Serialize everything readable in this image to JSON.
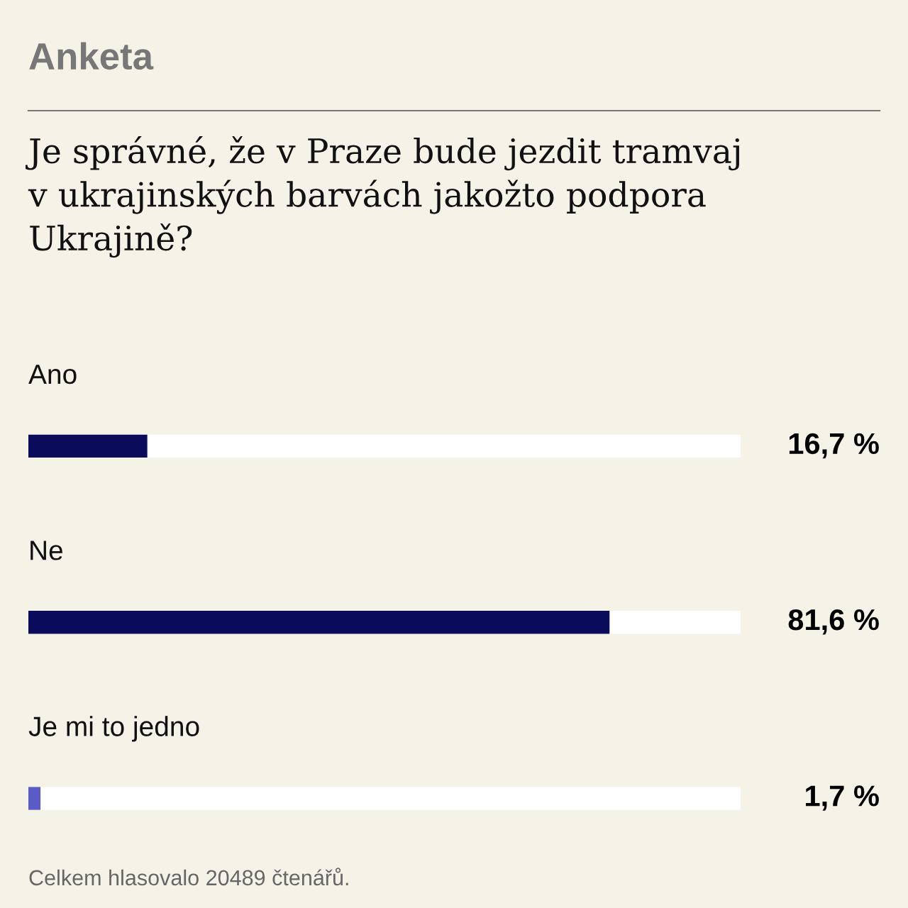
{
  "chart_data": {
    "type": "bar",
    "orientation": "horizontal",
    "title": "Anketa",
    "subtitle": "Je správné, že v Praze bude jezdit tramvaj\nv ukrajinských barvách jakožto podpora\nUkrajině?",
    "categories": [
      "Ano",
      "Ne",
      "Je mi to jedno"
    ],
    "values": [
      16.7,
      81.6,
      1.7
    ],
    "colors": [
      "#0b0b5c",
      "#0b0b5c",
      "#5b5bc8"
    ],
    "value_labels": [
      "16,7 %",
      "81,6 %",
      "1,7 %"
    ],
    "xlim": [
      0,
      100
    ],
    "annotations": [
      "Celkem hlasovalo 20489 čtenářů."
    ]
  }
}
